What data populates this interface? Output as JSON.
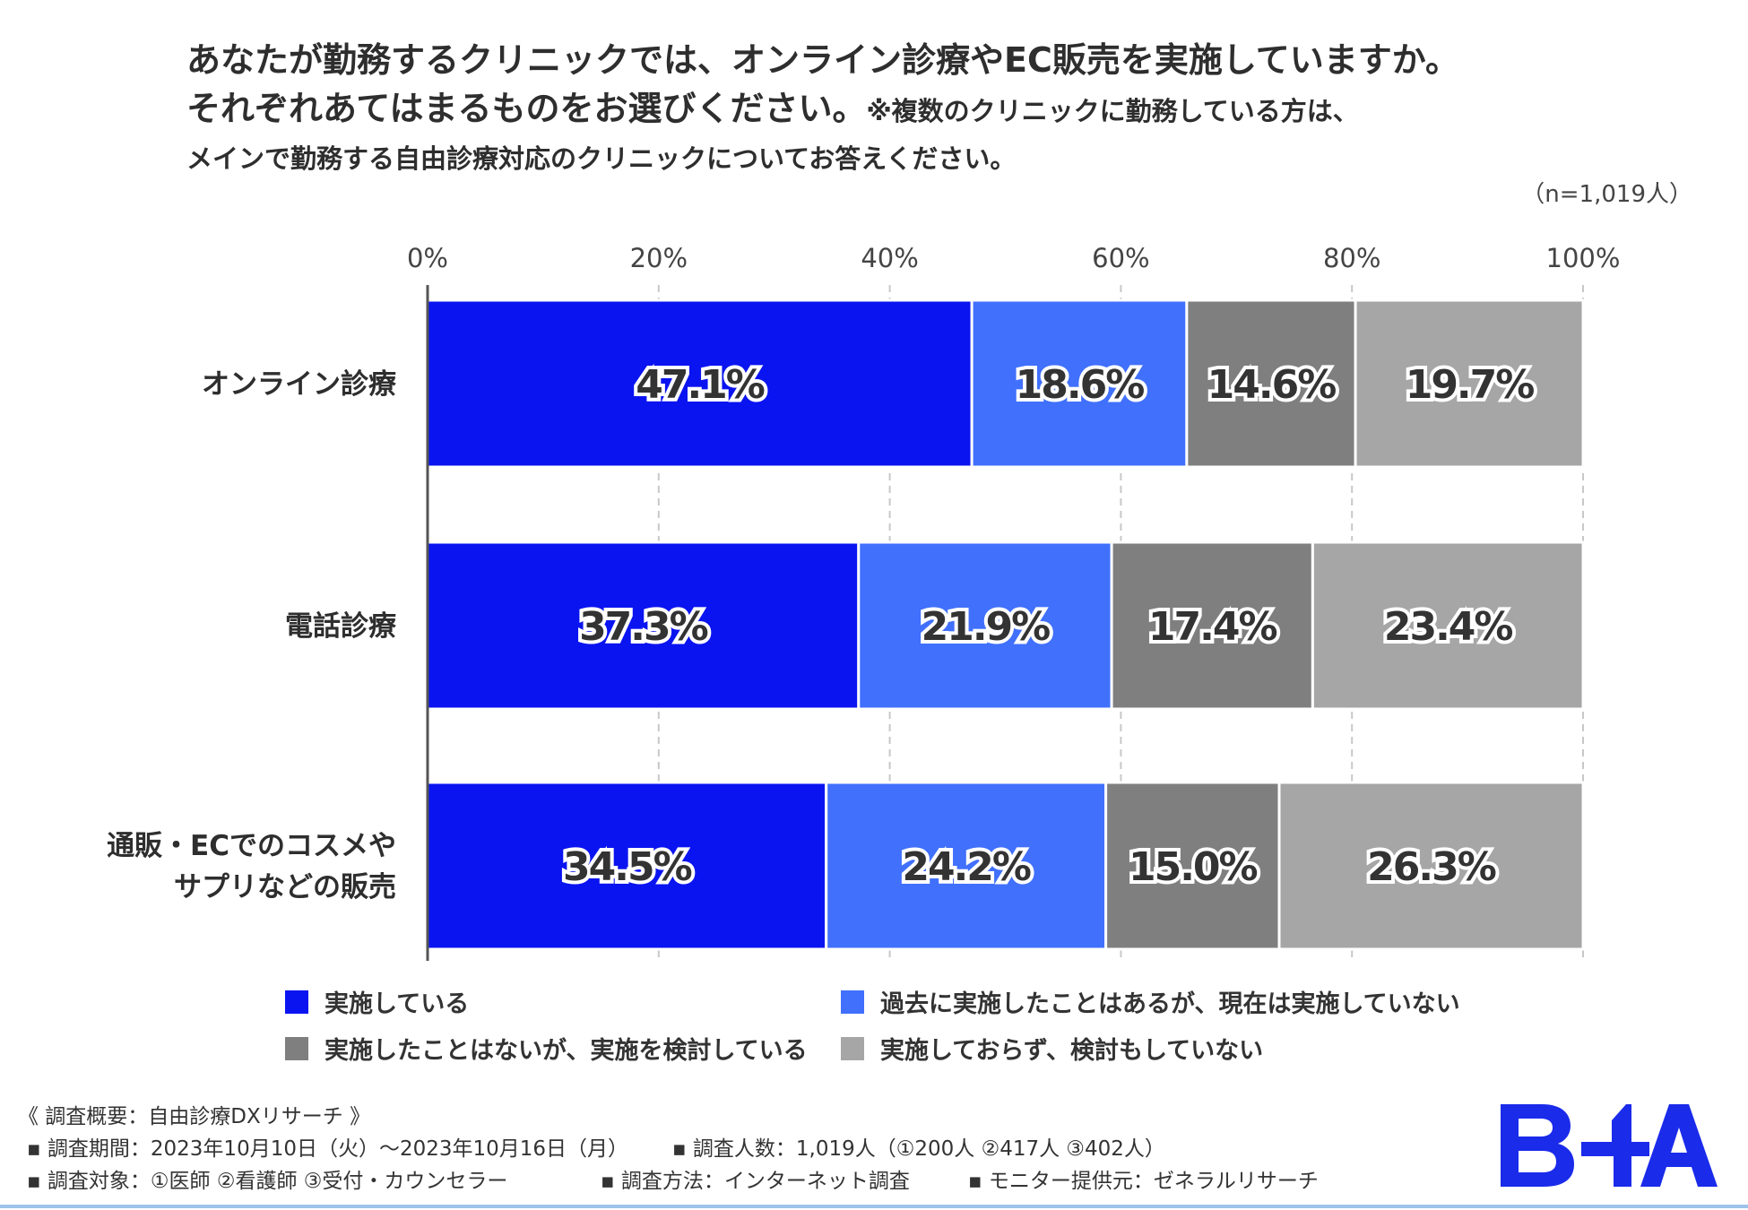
{
  "header": {
    "title_line1": "あなたが勤務するクリニックでは、オンライン診療やEC販売を実施していますか。",
    "title_line2": "それぞれあてはまるものをお選びください。",
    "title_note": "※複数のクリニックに勤務している方は、",
    "title_line3": "メインで勤務する自由診療対応のクリニックについてお答えください。",
    "sample_size": "（n=1,019人）"
  },
  "chart_data": {
    "type": "bar",
    "orientation": "horizontal",
    "stacked": true,
    "xlim": [
      0,
      100
    ],
    "x_ticks": [
      "0%",
      "20%",
      "40%",
      "60%",
      "80%",
      "100%"
    ],
    "grid": true,
    "categories": [
      "オンライン診療",
      "電話診療",
      "通販・ECでのコスメやサプリなどの販売"
    ],
    "category_lines": [
      [
        "オンライン診療"
      ],
      [
        "電話診療"
      ],
      [
        "通販・ECでのコスメや",
        "サプリなどの販売"
      ]
    ],
    "series": [
      {
        "name": "実施している",
        "color": "#0a14f0",
        "values": [
          47.1,
          37.3,
          34.5
        ],
        "labels": [
          "47.1%",
          "37.3%",
          "34.5%"
        ]
      },
      {
        "name": "過去に実施したことはあるが、現在は実施していない",
        "color": "#4070fc",
        "values": [
          18.6,
          21.9,
          24.2
        ],
        "labels": [
          "18.6%",
          "21.9%",
          "24.2%"
        ]
      },
      {
        "name": "実施したことはないが、実施を検討している",
        "color": "#7f7f7f",
        "values": [
          14.6,
          17.4,
          15.0
        ],
        "labels": [
          "14.6%",
          "17.4%",
          "15.0%"
        ]
      },
      {
        "name": "実施しておらず、検討もしていない",
        "color": "#a6a6a6",
        "values": [
          19.7,
          23.4,
          26.3
        ],
        "labels": [
          "19.7%",
          "23.4%",
          "26.3%"
        ]
      }
    ],
    "legend_position": "bottom"
  },
  "footer": {
    "heading": "《 調査概要：自由診療DXリサーチ 》",
    "period": "▪ 調査期間：2023年10月10日（火）～2023年10月16日（月）",
    "respondents": "▪ 調査人数：1,019人（①200人 ②417人 ③402人）",
    "target": "▪ 調査対象：①医師 ②看護師 ③受付・カウンセラー",
    "method": "▪ 調査方法：インターネット調査",
    "provider": "▪ モニター提供元：ゼネラルリサーチ"
  },
  "logo": {
    "color": "#1a2bea"
  }
}
